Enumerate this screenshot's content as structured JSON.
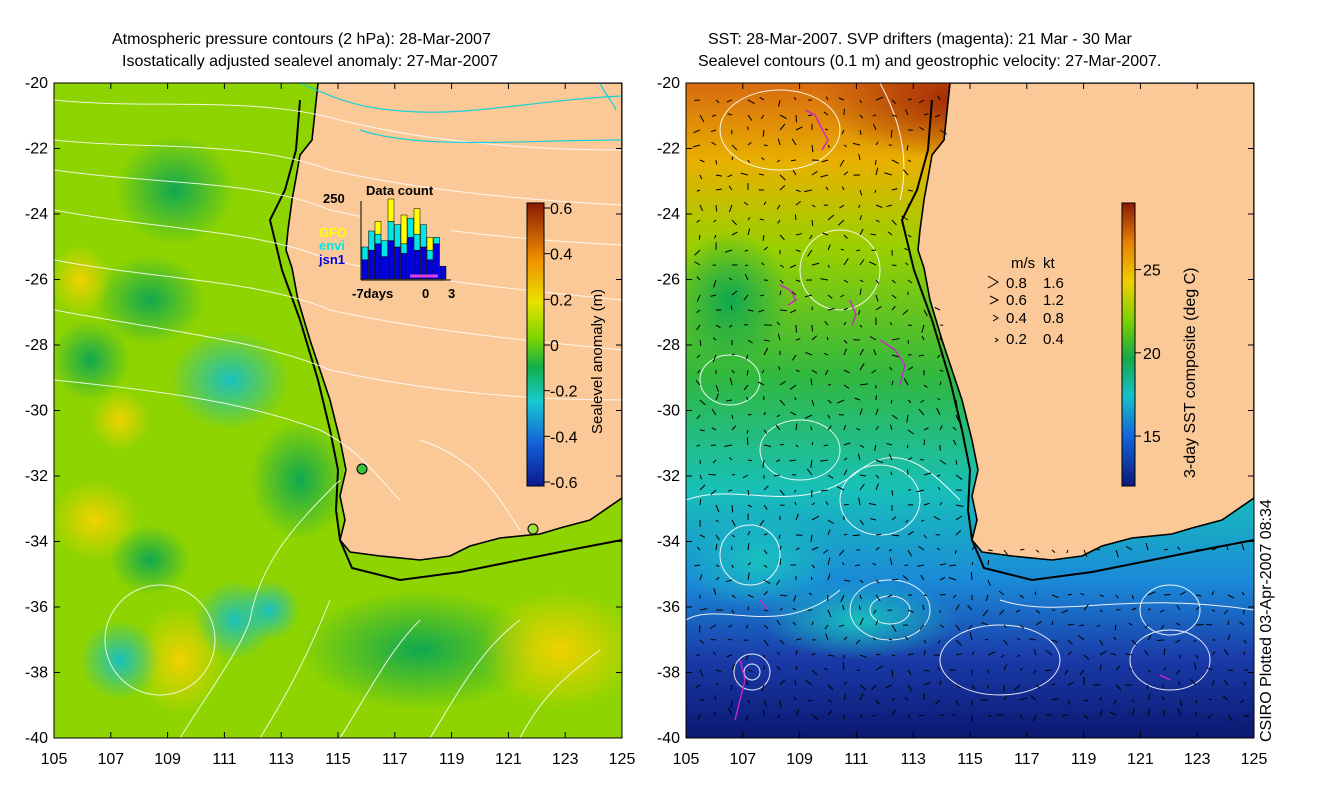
{
  "left_panel": {
    "title_line1": "Atmospheric pressure contours (2 hPa): 28-Mar-2007",
    "title_line2": "Isostatically adjusted sealevel anomaly: 27-Mar-2007",
    "colorbar": {
      "label": "Sealevel anomaly (m)",
      "ticks": [
        "0.6",
        "0.4",
        "0.2",
        "0",
        "-0.2",
        "-0.4",
        "-0.6"
      ]
    },
    "inset": {
      "title": "Data count",
      "ymax_label": "250",
      "legend": [
        {
          "name": "GFO",
          "color": "#ffff00"
        },
        {
          "name": "envi",
          "color": "#00e5e5"
        },
        {
          "name": "jsn1",
          "color": "#0000e0"
        }
      ],
      "xlabels": [
        "-7days",
        "0",
        "3"
      ]
    }
  },
  "right_panel": {
    "title_line1": "SST: 28-Mar-2007. SVP drifters (magenta): 21 Mar - 30 Mar",
    "title_line2": "Sealevel contours (0.1 m) and geostrophic velocity: 27-Mar-2007.",
    "colorbar": {
      "label": "3-day SST composite (deg C)",
      "ticks": [
        "25",
        "20",
        "15"
      ]
    },
    "velocity_legend": {
      "header_ms": "m/s",
      "header_kt": "kt",
      "rows": [
        {
          "ms": "0.8",
          "kt": "1.6"
        },
        {
          "ms": "0.6",
          "kt": "1.2"
        },
        {
          "ms": "0.4",
          "kt": "0.8"
        },
        {
          "ms": "0.2",
          "kt": "0.4"
        }
      ]
    }
  },
  "credit": "CSIRO Plotted 03-Apr-2007 08:34",
  "chart_data": [
    {
      "type": "heatmap",
      "title": "Atmospheric pressure contours (2 hPa): 28-Mar-2007 / Isostatically adjusted sealevel anomaly: 27-Mar-2007",
      "xlabel": "",
      "ylabel": "",
      "xlim": [
        105,
        125
      ],
      "ylim": [
        -40,
        -20
      ],
      "xticks": [
        "105",
        "107",
        "109",
        "111",
        "113",
        "115",
        "117",
        "119",
        "121",
        "123",
        "125"
      ],
      "yticks": [
        "-20",
        "-22",
        "-24",
        "-26",
        "-28",
        "-30",
        "-32",
        "-34",
        "-36",
        "-38",
        "-40"
      ],
      "colorbar_range": [
        -0.6,
        0.6
      ],
      "colorbar_label": "Sealevel anomaly (m)",
      "inset_bar": {
        "title": "Data count",
        "ymax": 250,
        "series": [
          {
            "name": "jsn1",
            "values": [
              60,
              90,
              110,
              70,
              120,
              100,
              80,
              130,
              90,
              100,
              60,
              110,
              40
            ]
          },
          {
            "name": "envi",
            "values": [
              40,
              60,
              30,
              50,
              60,
              70,
              30,
              60,
              50,
              70,
              30,
              20,
              0
            ]
          },
          {
            "name": "GFO",
            "values": [
              0,
              0,
              40,
              0,
              70,
              0,
              90,
              0,
              80,
              0,
              40,
              0,
              0
            ]
          }
        ]
      }
    },
    {
      "type": "heatmap",
      "title": "SST: 28-Mar-2007. SVP drifters (magenta): 21 Mar - 30 Mar / Sealevel contours (0.1 m) and geostrophic velocity: 27-Mar-2007.",
      "xlabel": "",
      "ylabel": "",
      "xlim": [
        105,
        125
      ],
      "ylim": [
        -40,
        -20
      ],
      "xticks": [
        "105",
        "107",
        "109",
        "111",
        "113",
        "115",
        "117",
        "119",
        "121",
        "123",
        "125"
      ],
      "yticks": [
        "-20",
        "-22",
        "-24",
        "-26",
        "-28",
        "-30",
        "-32",
        "-34",
        "-36",
        "-38",
        "-40"
      ],
      "colorbar_range": [
        12,
        29
      ],
      "colorbar_ticks": [
        15,
        20,
        25
      ],
      "colorbar_label": "3-day SST composite (deg C)"
    }
  ]
}
